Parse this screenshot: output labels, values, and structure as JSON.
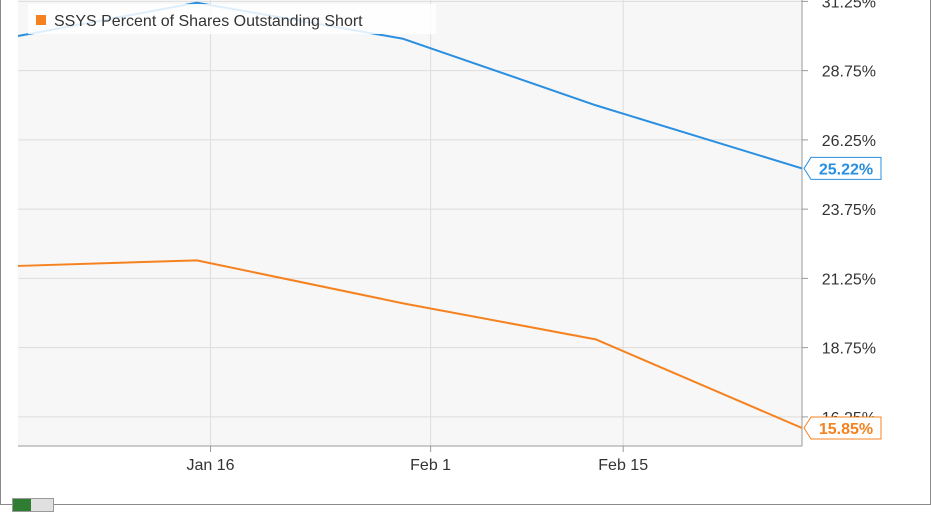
{
  "chart_data": {
    "type": "line",
    "x": [
      "2015-01-05",
      "2015-01-15",
      "2015-01-30",
      "2015-02-13",
      "2015-02-27"
    ],
    "x_tick_labels": [
      "Jan 16",
      "Feb 1",
      "Feb 15"
    ],
    "y_tick_labels": [
      "31.25%",
      "28.75%",
      "26.25%",
      "23.75%",
      "21.25%",
      "18.75%",
      "16.25%"
    ],
    "ylim": [
      15.2,
      31.3
    ],
    "series": [
      {
        "name": "",
        "color": "#2a8fe0",
        "values": [
          30.0,
          31.2,
          29.9,
          27.5,
          25.22
        ],
        "end_label": "25.22%"
      },
      {
        "name": "SSYS Percent of Shares Outstanding Short",
        "color": "#f5821f",
        "values": [
          21.7,
          21.9,
          20.35,
          19.05,
          15.85
        ],
        "end_label": "15.85%"
      }
    ],
    "grid": true,
    "legend_position": "top-left",
    "y_axis_side": "right"
  }
}
